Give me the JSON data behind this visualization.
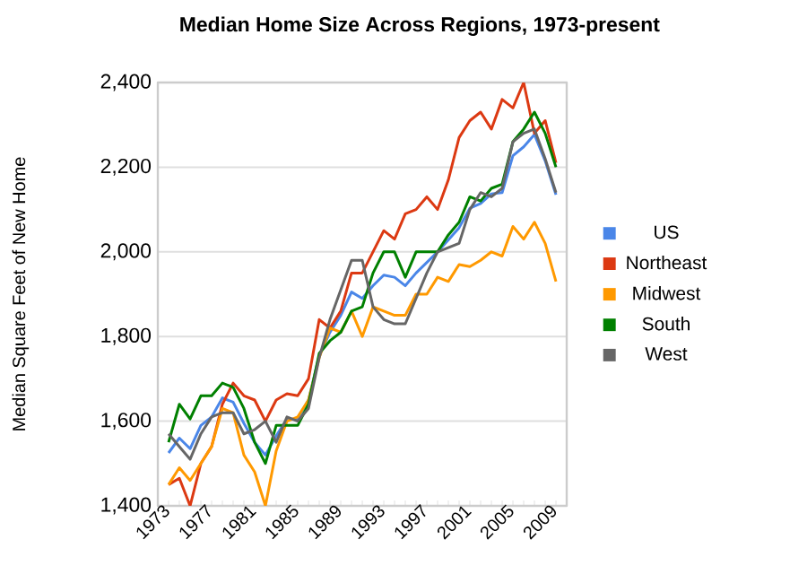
{
  "chart_data": {
    "type": "line",
    "title": "Median Home Size Across Regions, 1973-present",
    "ylabel": "Median Square Feet of New Home",
    "x": [
      1973,
      1974,
      1975,
      1976,
      1977,
      1978,
      1979,
      1980,
      1981,
      1982,
      1983,
      1984,
      1985,
      1986,
      1987,
      1988,
      1989,
      1990,
      1991,
      1992,
      1993,
      1994,
      1995,
      1996,
      1997,
      1998,
      1999,
      2000,
      2001,
      2002,
      2003,
      2004,
      2005,
      2006,
      2007,
      2008,
      2009
    ],
    "series": [
      {
        "name": "US",
        "color": "#4a86e8",
        "values": [
          1525,
          1560,
          1535,
          1590,
          1610,
          1655,
          1645,
          1595,
          1550,
          1520,
          1565,
          1605,
          1605,
          1650,
          1755,
          1810,
          1850,
          1905,
          1890,
          1920,
          1945,
          1940,
          1920,
          1950,
          1975,
          2000,
          2028,
          2057,
          2103,
          2114,
          2137,
          2140,
          2227,
          2248,
          2277,
          2215,
          2135
        ]
      },
      {
        "name": "Northeast",
        "color": "#dc3912",
        "values": [
          1450,
          1465,
          1400,
          1500,
          1540,
          1640,
          1690,
          1660,
          1650,
          1600,
          1650,
          1665,
          1660,
          1700,
          1840,
          1820,
          1860,
          1950,
          1950,
          2000,
          2050,
          2030,
          2090,
          2100,
          2130,
          2100,
          2170,
          2270,
          2310,
          2330,
          2290,
          2360,
          2340,
          2400,
          2280,
          2310,
          2210
        ]
      },
      {
        "name": "Midwest",
        "color": "#ff9900",
        "values": [
          1450,
          1490,
          1460,
          1500,
          1540,
          1630,
          1620,
          1520,
          1480,
          1400,
          1530,
          1600,
          1610,
          1650,
          1750,
          1820,
          1810,
          1860,
          1800,
          1870,
          1860,
          1850,
          1850,
          1900,
          1900,
          1940,
          1930,
          1970,
          1965,
          1980,
          2000,
          1990,
          2060,
          2030,
          2070,
          2020,
          1930
        ]
      },
      {
        "name": "South",
        "color": "#008000",
        "values": [
          1550,
          1640,
          1605,
          1660,
          1660,
          1690,
          1680,
          1630,
          1550,
          1500,
          1590,
          1590,
          1590,
          1640,
          1760,
          1790,
          1810,
          1860,
          1870,
          1950,
          2000,
          2000,
          1940,
          2000,
          2000,
          2000,
          2040,
          2070,
          2130,
          2120,
          2150,
          2160,
          2260,
          2290,
          2330,
          2280,
          2200
        ]
      },
      {
        "name": "West",
        "color": "#666666",
        "values": [
          1570,
          1540,
          1510,
          1570,
          1610,
          1620,
          1620,
          1570,
          1580,
          1600,
          1550,
          1610,
          1600,
          1630,
          1750,
          1840,
          1910,
          1980,
          1980,
          1870,
          1840,
          1830,
          1830,
          1890,
          1950,
          2000,
          2010,
          2020,
          2100,
          2140,
          2130,
          2150,
          2260,
          2280,
          2290,
          2220,
          2140
        ]
      }
    ],
    "xlim": [
      1972,
      2010
    ],
    "xticks": [
      1973,
      {
        "value": 1974,
        "label": null
      },
      {
        "value": 1975,
        "label": null
      },
      {
        "value": 1976,
        "label": null
      },
      1977,
      {
        "value": 1978,
        "label": null
      },
      {
        "value": 1979,
        "label": null
      },
      {
        "value": 1980,
        "label": null
      },
      1981,
      {
        "value": 1982,
        "label": null
      },
      {
        "value": 1983,
        "label": null
      },
      {
        "value": 1984,
        "label": null
      },
      1985,
      {
        "value": 1986,
        "label": null
      },
      {
        "value": 1987,
        "label": null
      },
      {
        "value": 1988,
        "label": null
      },
      1989,
      {
        "value": 1990,
        "label": null
      },
      {
        "value": 1991,
        "label": null
      },
      {
        "value": 1992,
        "label": null
      },
      1993,
      {
        "value": 1994,
        "label": null
      },
      {
        "value": 1995,
        "label": null
      },
      {
        "value": 1996,
        "label": null
      },
      1997,
      {
        "value": 1998,
        "label": null
      },
      {
        "value": 1999,
        "label": null
      },
      {
        "value": 2000,
        "label": null
      },
      2001,
      {
        "value": 2002,
        "label": null
      },
      {
        "value": 2003,
        "label": null
      },
      {
        "value": 2004,
        "label": null
      },
      2005,
      {
        "value": 2006,
        "label": null
      },
      {
        "value": 2007,
        "label": null
      },
      {
        "value": 2008,
        "label": null
      },
      2009
    ],
    "ylim": [
      1400,
      2400
    ],
    "yticks": [
      {
        "value": 1400,
        "label": "1,400"
      },
      {
        "value": 1600,
        "label": "1,600"
      },
      {
        "value": 1800,
        "label": "1,800"
      },
      {
        "value": 2000,
        "label": "2,000"
      },
      {
        "value": 2200,
        "label": "2,200"
      },
      {
        "value": 2400,
        "label": "2,400"
      }
    ],
    "grid": "y",
    "legend": "right",
    "marker": "none",
    "line_style": "solid"
  }
}
